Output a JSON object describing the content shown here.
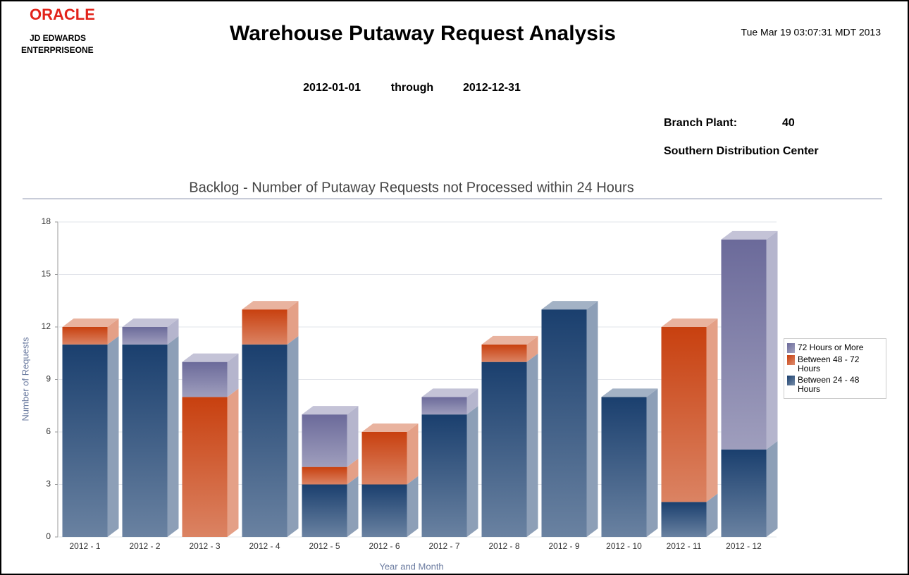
{
  "header": {
    "logo": "ORACLE",
    "logo_line1": "JD EDWARDS",
    "logo_line2": "ENTERPRISEONE",
    "title": "Warehouse Putaway Request Analysis",
    "timestamp": "Tue Mar 19 03:07:31 MDT 2013",
    "date_from": "2012-01-01",
    "through": "through",
    "date_to": "2012-12-31",
    "branch_label": "Branch Plant:",
    "branch_value": "40",
    "branch_name": "Southern Distribution Center"
  },
  "chart_data": {
    "type": "stacked_bar",
    "title": "Backlog - Number of Putaway Requests not Processed within 24 Hours",
    "x_label": "Year and Month",
    "y_label": "Number of Requests",
    "categories": [
      "2012 - 1",
      "2012 - 2",
      "2012 - 3",
      "2012 - 4",
      "2012 - 5",
      "2012 - 6",
      "2012 - 7",
      "2012 - 8",
      "2012 - 9",
      "2012 - 10",
      "2012 - 11",
      "2012 - 12"
    ],
    "series": [
      {
        "name": "Between 24 - 48 Hours",
        "color": "#1a3f6e",
        "values": [
          11,
          11,
          0,
          11,
          3,
          3,
          7,
          10,
          13,
          8,
          2,
          5
        ]
      },
      {
        "name": "Between 48 - 72 Hours",
        "color": "#c8400f",
        "values": [
          1,
          0,
          8,
          2,
          1,
          3,
          0,
          1,
          0,
          0,
          10,
          0
        ]
      },
      {
        "name": "72 Hours or More",
        "color": "#6b6a9a",
        "values": [
          0,
          1,
          2,
          0,
          3,
          0,
          1,
          0,
          0,
          0,
          0,
          12
        ]
      }
    ],
    "ylim": [
      0,
      18
    ],
    "yticks": [
      0,
      3,
      6,
      9,
      12,
      15,
      18
    ],
    "grid": true,
    "legend": "right"
  }
}
